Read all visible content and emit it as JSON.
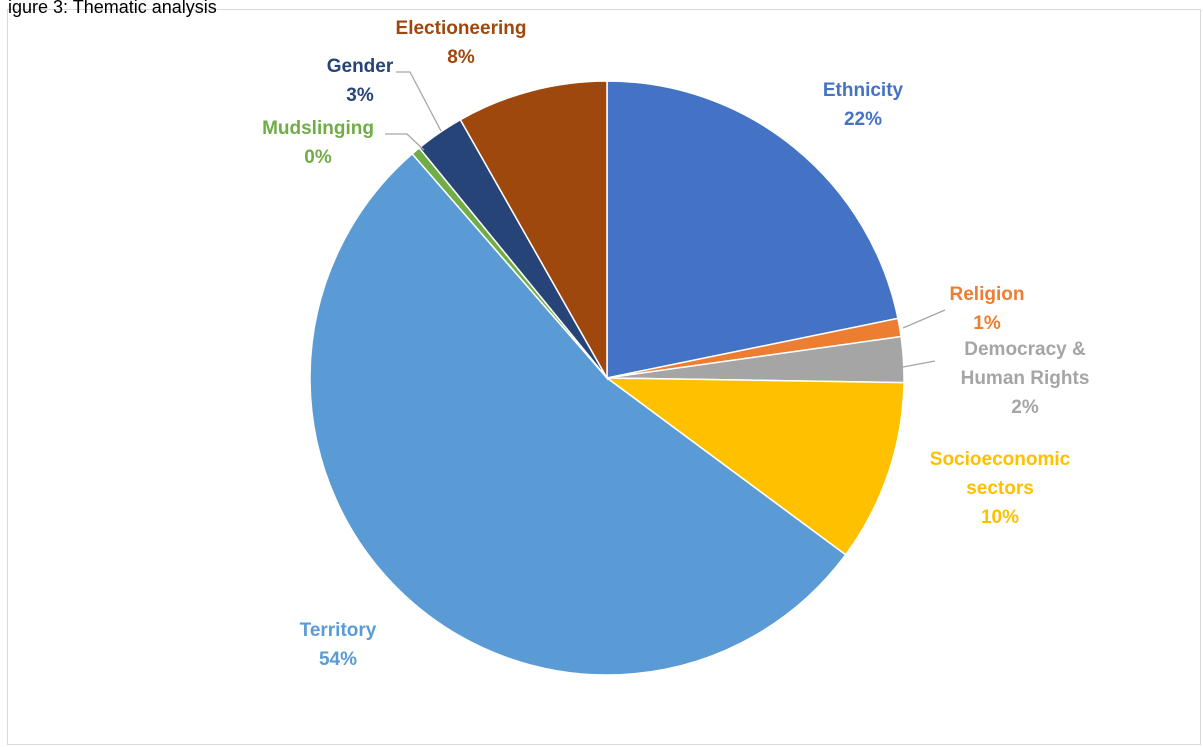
{
  "caption": {
    "text": "igure 3: Thematic analysis"
  },
  "chart_data": {
    "type": "pie",
    "title": "",
    "slices": [
      {
        "name": "Ethnicity",
        "value": 22,
        "pct": "22%",
        "color": "#4472C4",
        "label_color": "#4472C4"
      },
      {
        "name": "Religion",
        "value": 1,
        "pct": "1%",
        "color": "#ED7D31",
        "label_color": "#ED7D31"
      },
      {
        "name": "Democracy & Human Rights",
        "value": 2.5,
        "pct": "2%",
        "color": "#A5A5A5",
        "label_color": "#A5A5A5"
      },
      {
        "name": "Socioeconomic sectors",
        "value": 10,
        "pct": "10%",
        "color": "#FFC000",
        "label_color": "#FFC000"
      },
      {
        "name": "Territory",
        "value": 54,
        "pct": "54%",
        "color": "#5B9BD5",
        "label_color": "#5B9BD5"
      },
      {
        "name": "Mudslinging",
        "value": 0.5,
        "pct": "0%",
        "color": "#70AD47",
        "label_color": "#70AD47"
      },
      {
        "name": "Gender",
        "value": 2.7,
        "pct": "3%",
        "color": "#264478",
        "label_color": "#264478"
      },
      {
        "name": "Electioneering",
        "value": 8.3,
        "pct": "8%",
        "color": "#9E480E",
        "label_color": "#9E480E"
      }
    ],
    "start_angle_deg": 0,
    "direction": "clockwise",
    "legend": "none",
    "data_labels": "outside with leader lines"
  }
}
